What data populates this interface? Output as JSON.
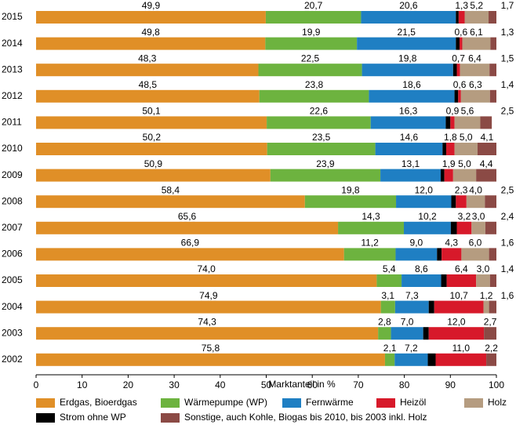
{
  "chart_data": {
    "type": "stacked-bar-horizontal",
    "x_label": "Marktanteil in %",
    "categories": [
      "2015",
      "2014",
      "2013",
      "2012",
      "2011",
      "2010",
      "2009",
      "2008",
      "2007",
      "2006",
      "2005",
      "2004",
      "2003",
      "2002"
    ],
    "xlim": [
      0,
      100
    ],
    "xticks": [
      0,
      10,
      20,
      30,
      40,
      50,
      60,
      70,
      80,
      90,
      100
    ],
    "series": [
      {
        "name": "Erdgas, Bioerdgas",
        "color": "#e08f27",
        "values": [
          49.9,
          49.8,
          48.3,
          48.5,
          50.1,
          50.2,
          50.9,
          58.4,
          65.6,
          66.9,
          74.0,
          74.9,
          74.3,
          75.8
        ],
        "value_labels": [
          "49,9",
          "49,8",
          "48,3",
          "48,5",
          "50,1",
          "50,2",
          "50,9",
          "58,4",
          "65,6",
          "66,9",
          "74,0",
          "74,9",
          "74,3",
          "75,8"
        ]
      },
      {
        "name": "Wärmepumpe (WP)",
        "color": "#6db33f",
        "values": [
          20.7,
          19.9,
          22.5,
          23.8,
          22.6,
          23.5,
          23.9,
          19.8,
          14.3,
          11.2,
          5.4,
          3.1,
          2.8,
          2.1
        ],
        "value_labels": [
          "20,7",
          "19,9",
          "22,5",
          "23,8",
          "22,6",
          "23,5",
          "23,9",
          "19,8",
          "14,3",
          "11,2",
          "5,4",
          "3,1",
          "2,8",
          "2,1"
        ]
      },
      {
        "name": "Fernwärme",
        "color": "#1f7fc3",
        "values": [
          20.6,
          21.5,
          19.8,
          18.6,
          16.3,
          14.6,
          13.1,
          12.0,
          10.2,
          9.0,
          8.6,
          7.3,
          7.0,
          7.2
        ],
        "value_labels": [
          "20,6",
          "21,5",
          "19,8",
          "18,6",
          "16,3",
          "14,6",
          "13,1",
          "12,0",
          "10,2",
          "9,0",
          "8,6",
          "7,3",
          "7,0",
          "7,2"
        ]
      },
      {
        "name": "Strom ohne WP",
        "color": "#000000",
        "values": [
          0.6,
          0.8,
          0.8,
          0.8,
          1.0,
          0.8,
          0.8,
          1.0,
          1.3,
          1.0,
          1.2,
          1.2,
          1.2,
          1.7
        ]
      },
      {
        "name": "Heizöl",
        "color": "#d7192a",
        "values": [
          1.3,
          0.6,
          0.7,
          0.6,
          0.9,
          1.8,
          1.9,
          2.3,
          3.2,
          4.3,
          6.4,
          10.7,
          12.0,
          11.0
        ],
        "value_labels": [
          "1,3",
          "0,6",
          "0,7",
          "0,6",
          "0,9",
          "1,8",
          "1,9",
          "2,3",
          "3,2",
          "4,3",
          "6,4",
          "10,7",
          "12,0",
          "11,0"
        ]
      },
      {
        "name": "Holz",
        "color": "#b59c80",
        "values": [
          5.2,
          6.1,
          6.4,
          6.3,
          5.6,
          5.0,
          5.0,
          4.0,
          3.0,
          6.0,
          3.0,
          1.2,
          null,
          null
        ],
        "value_labels": [
          "5,2",
          "6,1",
          "6,4",
          "6,3",
          "5,6",
          "5,0",
          "5,0",
          "4,0",
          "3,0",
          "6,0",
          "3,0",
          "1,2",
          null,
          null
        ]
      },
      {
        "name": "Sonstige, auch Kohle, Biogas bis 2010, bis 2003 inkl. Holz",
        "color": "#8b4a45",
        "values": [
          1.7,
          1.3,
          1.5,
          1.4,
          2.5,
          4.1,
          4.4,
          2.5,
          2.4,
          1.6,
          1.4,
          1.6,
          2.7,
          2.2
        ],
        "value_labels": [
          "1,7",
          "1,3",
          "1,5",
          "1,4",
          "2,5",
          "4,1",
          "4,4",
          "2,5",
          "2,4",
          "1,6",
          "1,4",
          "1,6",
          "2,7",
          "2,2"
        ]
      }
    ]
  }
}
